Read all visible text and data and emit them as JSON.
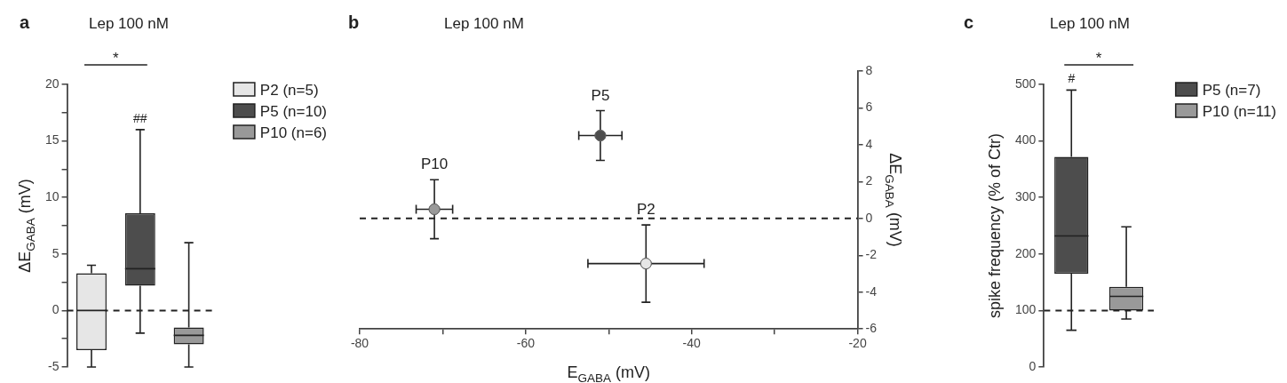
{
  "chart_data": [
    {
      "type": "box",
      "title": "Lep 100 nM",
      "ylabel": "ΔE$_{GABA}$ (mV)",
      "categories": [
        null,
        null,
        null
      ],
      "series": [
        {
          "name": "P2 (n=5)",
          "color": "#e6e6e6",
          "boxes": [
            {
              "low": -5,
              "q1": -3.5,
              "median": 0,
              "q3": 3.3,
              "high": 4
            },
            null,
            null
          ]
        },
        {
          "name": "P5 (n=10)",
          "color": "#4d4d4d",
          "boxes": [
            null,
            {
              "low": -2,
              "q1": 2.2,
              "median": 3.7,
              "q3": 8.6,
              "high": 16
            },
            null
          ]
        },
        {
          "name": "P10 (n=6)",
          "color": "#999999",
          "boxes": [
            null,
            null,
            {
              "low": -5,
              "q1": -3,
              "median": -2.2,
              "q3": -1.5,
              "high": 6
            }
          ]
        }
      ],
      "ylim": [
        -5,
        20
      ],
      "yticks": [
        -5,
        {
          "value": -2.5,
          "label": null
        },
        0,
        {
          "value": 2.5,
          "label": null
        },
        5,
        {
          "value": 7.5,
          "label": null
        },
        10,
        {
          "value": 12.5,
          "label": null
        },
        15,
        {
          "value": 17.5,
          "label": null
        },
        20
      ],
      "ref_lines": [
        {
          "axis": "y",
          "value": 0,
          "line_style": "dashed"
        }
      ],
      "legend": "top right",
      "annotations": [
        "a",
        "*",
        "##"
      ]
    },
    {
      "type": "scatter",
      "title": "Lep 100 nM",
      "xlabel": "E$_{GABA}$ (mV)",
      "y2label": "ΔE$_{GABA}$ (mV)",
      "marker": "circle",
      "series": [
        {
          "name": "P10",
          "color": "#999999",
          "axis": "y2",
          "x": [
            -71
          ],
          "values": [
            0.5
          ],
          "errors": [
            1.6
          ],
          "xerrors": [
            2.2
          ]
        },
        {
          "name": "P5",
          "color": "#4d4d4d",
          "axis": "y2",
          "x": [
            -51
          ],
          "values": [
            4.5
          ],
          "errors": [
            1.35
          ],
          "xerrors": [
            2.6
          ]
        },
        {
          "name": "P2",
          "color": "#e6e6e6",
          "axis": "y2",
          "x": [
            -45.5
          ],
          "values": [
            -2.45
          ],
          "errors": [
            2.1
          ],
          "xerrors": [
            7
          ]
        }
      ],
      "xlim": [
        -80,
        -20
      ],
      "xticks": [
        -80,
        {
          "value": -70,
          "label": null
        },
        -60,
        {
          "value": -50,
          "label": null
        },
        -40,
        {
          "value": -30,
          "label": null
        },
        -20
      ],
      "y2lim": [
        -6,
        8
      ],
      "y2ticks": [
        -6,
        -4,
        -2,
        0,
        2,
        4,
        6,
        8
      ],
      "ref_lines": [
        {
          "axis": "y2",
          "value": 0,
          "line_style": "dashed"
        }
      ],
      "annotations": [
        "b"
      ]
    },
    {
      "type": "box",
      "title": "Lep 100 nM",
      "ylabel": "spike frequency (% of Ctr)",
      "categories": [
        null,
        null
      ],
      "series": [
        {
          "name": "P5 (n=7)",
          "color": "#4d4d4d",
          "boxes": [
            {
              "low": 65,
              "q1": 165,
              "median": 232,
              "q3": 372,
              "high": 490
            },
            null
          ]
        },
        {
          "name": "P10 (n=11)",
          "color": "#999999",
          "boxes": [
            null,
            {
              "low": 85,
              "q1": 100,
              "median": 125,
              "q3": 142,
              "high": 248
            }
          ]
        }
      ],
      "ylim": [
        0,
        500
      ],
      "yticks": [
        0,
        100,
        200,
        300,
        400,
        500
      ],
      "ref_lines": [
        {
          "axis": "y",
          "value": 100,
          "line_style": "dashed"
        }
      ],
      "legend": "top right",
      "annotations": [
        "c",
        "*",
        "#"
      ]
    }
  ]
}
